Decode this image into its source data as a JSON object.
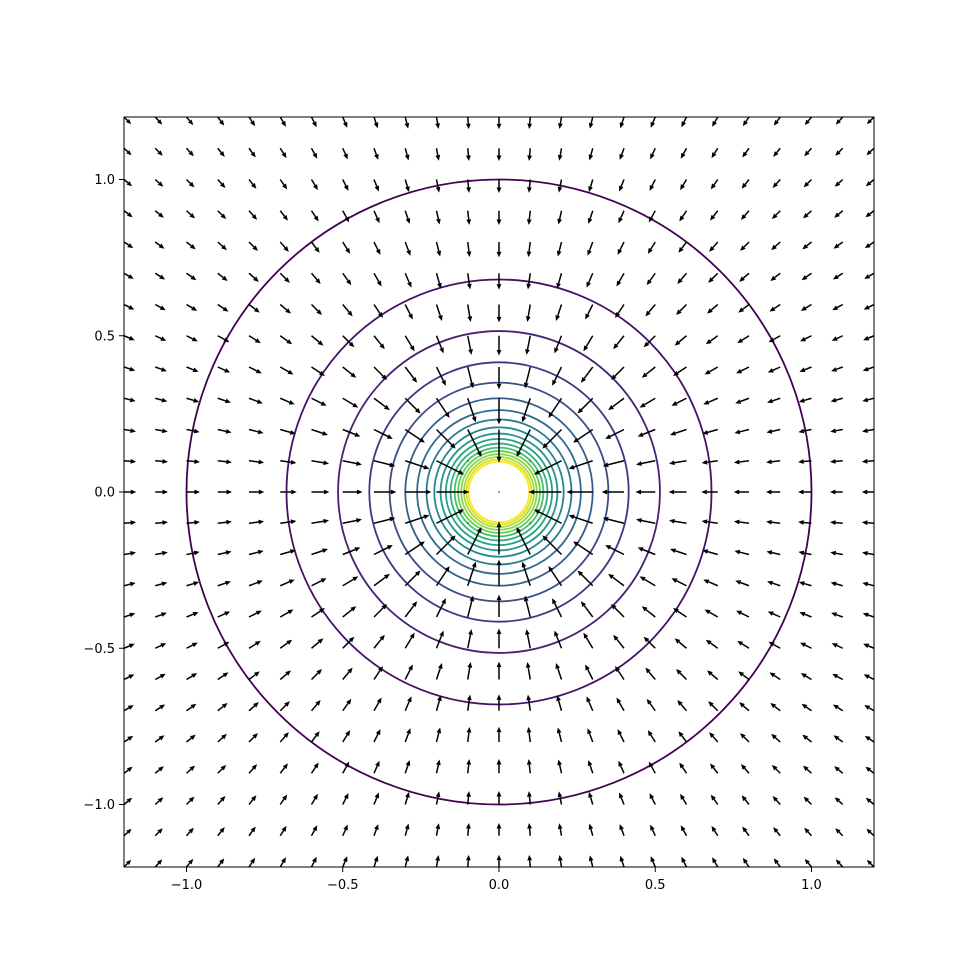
{
  "chart_data": {
    "type": "contour",
    "title": "",
    "xlabel": "",
    "ylabel": "",
    "xlim": [
      -1.2,
      1.2
    ],
    "ylim": [
      -1.2,
      1.2
    ],
    "x_ticks": [
      -1.0,
      -0.5,
      0.0,
      0.5,
      1.0
    ],
    "x_tick_labels": [
      "−1.0",
      "−0.5",
      "0.0",
      "0.5",
      "1.0"
    ],
    "y_ticks": [
      -1.0,
      -0.5,
      0.0,
      0.5,
      1.0
    ],
    "y_tick_labels": [
      "−1.0",
      "−0.5",
      "0.0",
      "0.5",
      "1.0"
    ],
    "grid": false,
    "legend": "none",
    "contour_levels": {
      "radii": [
        1.0,
        0.68,
        0.515,
        0.415,
        0.35,
        0.3,
        0.262,
        0.232,
        0.207,
        0.187,
        0.17,
        0.155,
        0.142,
        0.131,
        0.121,
        0.112,
        0.104,
        0.097
      ],
      "colormap": "viridis"
    },
    "quiver": {
      "x_start": -1.2,
      "x_step": 0.1,
      "count": 25,
      "direction": "toward origin",
      "color": "#000000"
    },
    "colors": {
      "frame": "#000000",
      "arrows": "#000000"
    }
  }
}
